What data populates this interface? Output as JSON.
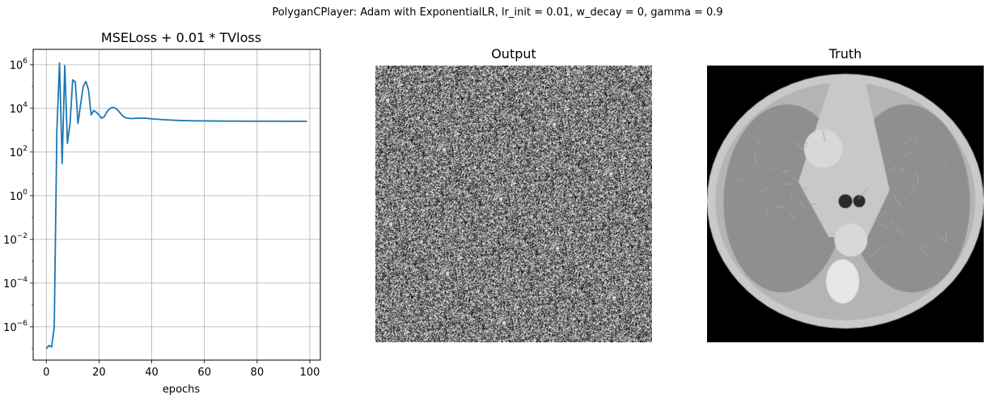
{
  "suptitle": "PolyganCPlayer: Adam with ExponentialLR, lr_init = 0.01, w_decay = 0, gamma = 0.9",
  "chart_data": [
    {
      "type": "line",
      "title": "MSELoss + 0.01 * TVloss",
      "xlabel": "epochs",
      "ylabel": "",
      "yscale": "log",
      "grid": true,
      "xlim": [
        -5,
        104
      ],
      "ylim": [
        3e-08,
        5000000.0
      ],
      "xticks": [
        0,
        20,
        40,
        60,
        80,
        100
      ],
      "xtick_labels": [
        "0",
        "20",
        "40",
        "60",
        "80",
        "100"
      ],
      "yticks_exp": [
        -6,
        -4,
        -2,
        0,
        2,
        4,
        6
      ],
      "ytick_labels": [
        "10",
        "10",
        "10",
        "10",
        "10",
        "10",
        "10"
      ],
      "ytick_exponents": [
        "−6",
        "−4",
        "−2",
        "0",
        "2",
        "4",
        "6"
      ],
      "line_color": "#1f77b4",
      "series": [
        {
          "x": [
            0,
            1,
            2,
            3,
            4,
            5,
            6,
            7,
            8,
            9,
            10,
            11,
            12,
            13,
            14,
            15,
            16,
            17,
            18,
            19,
            20,
            21,
            22,
            23,
            24,
            25,
            26,
            27,
            28,
            29,
            30,
            32,
            34,
            36,
            38,
            40,
            45,
            50,
            55,
            60,
            70,
            80,
            90,
            99
          ],
          "y": [
            1e-07,
            1.4e-07,
            1.2e-07,
            1e-06,
            1000,
            1200000,
            30,
            900000,
            250,
            2000,
            200000,
            160000,
            2000,
            15000,
            100000,
            170000,
            70000,
            5000,
            8000,
            6500,
            5000,
            3500,
            4200,
            7000,
            9500,
            11000,
            10500,
            8500,
            6200,
            4500,
            3700,
            3400,
            3500,
            3600,
            3500,
            3300,
            3000,
            2800,
            2700,
            2650,
            2600,
            2580,
            2570,
            2560
          ]
        }
      ]
    },
    {
      "type": "heatmap",
      "title": "Output",
      "description_cmap": "gray"
    },
    {
      "type": "heatmap",
      "title": "Truth",
      "description_cmap": "gray"
    }
  ]
}
